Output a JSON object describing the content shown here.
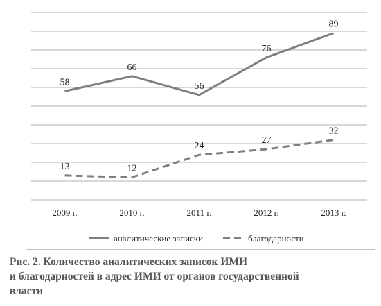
{
  "chart_data": {
    "type": "line",
    "categories": [
      "2009 г.",
      "2010 г.",
      "2011 г.",
      "2012 г.",
      "2013 г."
    ],
    "series": [
      {
        "name": "аналитические записки",
        "values": [
          58,
          66,
          56,
          76,
          89
        ],
        "color": "#7f7f7f",
        "style": "solid"
      },
      {
        "name": "благодарности",
        "values": [
          13,
          12,
          24,
          27,
          32
        ],
        "color": "#7f7f7f",
        "style": "dashed"
      }
    ],
    "ylim": [
      0,
      100
    ],
    "grid": true,
    "legend_position": "bottom"
  },
  "caption": {
    "line1": "Рис. 2. Количество аналитических записок ИМИ",
    "line2": "и благодарностей в адрес ИМИ от органов государственной",
    "line3": "власти"
  }
}
